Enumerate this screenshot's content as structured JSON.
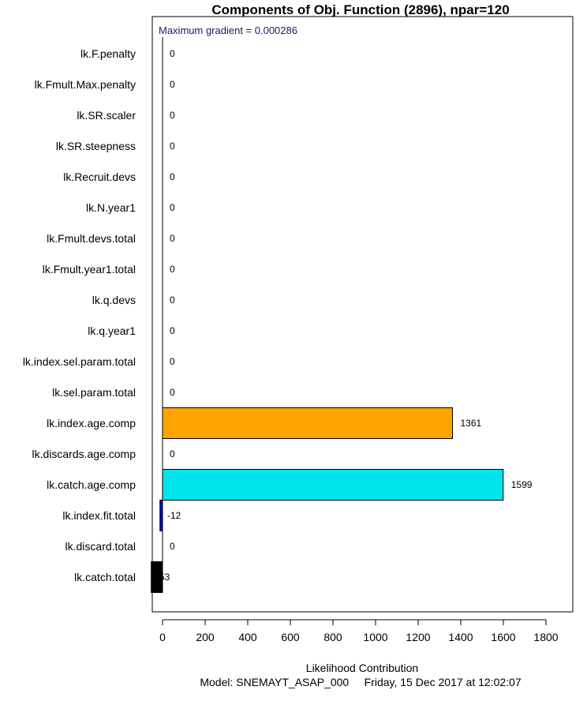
{
  "chart_data": {
    "type": "bar",
    "orientation": "horizontal",
    "title": "Components of Obj. Function (2896), npar=120",
    "annotation": "Maximum gradient = 0.000286",
    "xlabel": "Likelihood Contribution",
    "subtitle": "Model: SNEMAYT_ASAP_000     Friday, 15 Dec 2017 at 12:02:07",
    "xlim": [
      -50,
      1800
    ],
    "xticks": [
      0,
      200,
      400,
      600,
      800,
      1000,
      1200,
      1400,
      1600,
      1800
    ],
    "grid": false,
    "categories": [
      "lk.F.penalty",
      "lk.Fmult.Max.penalty",
      "lk.SR.scaler",
      "lk.SR.steepness",
      "lk.Recruit.devs",
      "lk.N.year1",
      "lk.Fmult.devs.total",
      "lk.Fmult.year1.total",
      "lk.q.devs",
      "lk.q.year1",
      "lk.index.sel.param.total",
      "lk.sel.param.total",
      "lk.index.age.comp",
      "lk.discards.age.comp",
      "lk.catch.age.comp",
      "lk.index.fit.total",
      "lk.discard.total",
      "lk.catch.total"
    ],
    "values": [
      0,
      0,
      0,
      0,
      0,
      0,
      0,
      0,
      0,
      0,
      0,
      0,
      1361,
      0,
      1599,
      -12,
      0,
      -53
    ],
    "value_labels": [
      "0",
      "0",
      "0",
      "0",
      "0",
      "0",
      "0",
      "0",
      "0",
      "0",
      "0",
      "0",
      "1361",
      "0",
      "1599",
      "-12",
      "0",
      "-53"
    ],
    "colors": [
      "#ffffff",
      "#ffffff",
      "#ffffff",
      "#ffffff",
      "#ffffff",
      "#ffffff",
      "#ffffff",
      "#ffffff",
      "#ffffff",
      "#ffffff",
      "#ffffff",
      "#ffffff",
      "#ffa500",
      "#ffffff",
      "#00e5ee",
      "#0000cd",
      "#ffffff",
      "#000000"
    ]
  }
}
